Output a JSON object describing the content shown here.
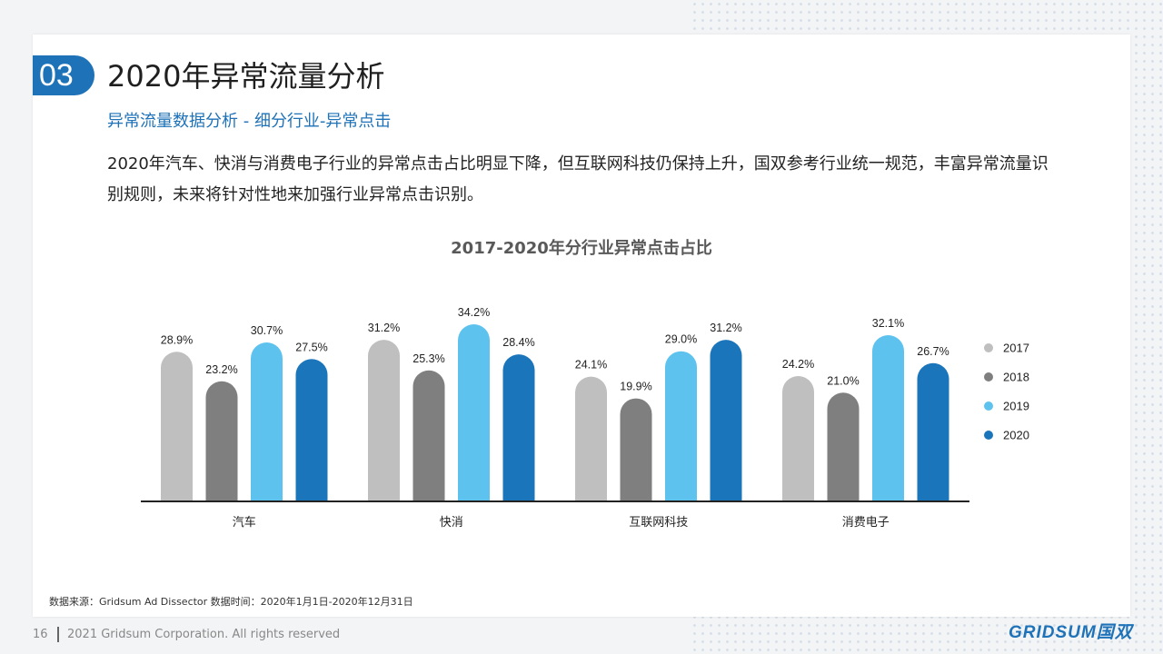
{
  "header": {
    "section_number": "03",
    "title": "2020年异常流量分析",
    "subtitle": "异常流量数据分析 - 细分行业-异常点击",
    "description": "2020年汽车、快消与消费电子行业的异常点击占比明显下降，但互联网科技仍保持上升，国双参考行业统一规范，丰富异常流量识别规则，未来将针对性地来加强行业异常点击识别。"
  },
  "chart_data": {
    "type": "bar",
    "title": "2017-2020年分行业异常点击占比",
    "categories": [
      "汽车",
      "快消",
      "互联网科技",
      "消费电子"
    ],
    "series": [
      {
        "name": "2017",
        "color": "#bfbfbf",
        "values": [
          28.9,
          31.2,
          24.1,
          24.2
        ],
        "labels": [
          "28.9%",
          "31.2%",
          "24.1%",
          "24.2%"
        ]
      },
      {
        "name": "2018",
        "color": "#7f7f7f",
        "values": [
          23.2,
          25.3,
          19.9,
          21.0
        ],
        "labels": [
          "23.2%",
          "25.3%",
          "19.9%",
          "21.0%"
        ]
      },
      {
        "name": "2019",
        "color": "#5ec2ee",
        "values": [
          30.7,
          34.2,
          29.0,
          32.1
        ],
        "labels": [
          "30.7%",
          "34.2%",
          "29.0%",
          "32.1%"
        ]
      },
      {
        "name": "2020",
        "color": "#1b75bb",
        "values": [
          27.5,
          28.4,
          31.2,
          26.7
        ],
        "labels": [
          "27.5%",
          "28.4%",
          "31.2%",
          "26.7%"
        ]
      }
    ],
    "legend_position": "right",
    "ylim": [
      0,
      36
    ],
    "grid": false
  },
  "footer": {
    "source": "数据来源：Gridsum Ad Dissector 数据时间：2020年1月1日-2020年12月31日",
    "page_number": "16",
    "copyright": "2021 Gridsum Corporation. All rights reserved",
    "logo_text": "GRIDSUM国双"
  }
}
